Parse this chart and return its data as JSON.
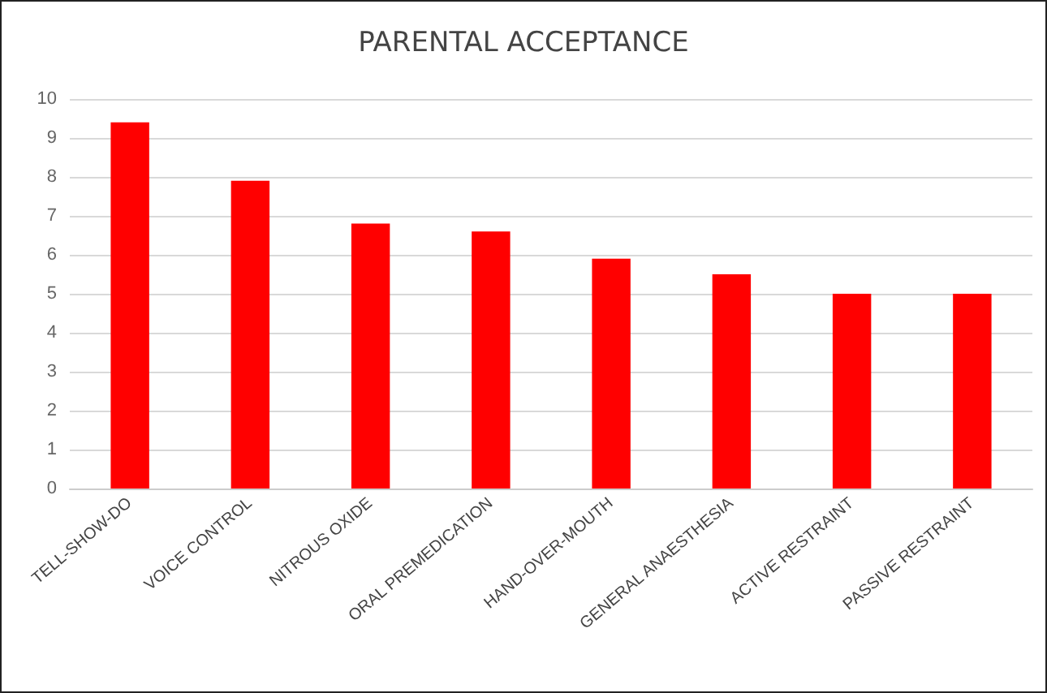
{
  "chart_data": {
    "type": "bar",
    "title": "PARENTAL ACCEPTANCE",
    "categories": [
      "TELL-SHOW-DO",
      "VOICE CONTROL",
      "NITROUS OXIDE",
      "ORAL PREMEDICATION",
      "HAND-OVER-MOUTH",
      "GENERAL ANAESTHESIA",
      "ACTIVE RESTRAINT",
      "PASSIVE RESTRAINT"
    ],
    "values": [
      9.4,
      7.9,
      6.8,
      6.6,
      5.9,
      5.5,
      5.0,
      5.0
    ],
    "color": "#ff0000",
    "ylim": [
      0,
      10
    ],
    "yticks": [
      0,
      1,
      2,
      3,
      4,
      5,
      6,
      7,
      8,
      9,
      10
    ],
    "grid": "y"
  }
}
